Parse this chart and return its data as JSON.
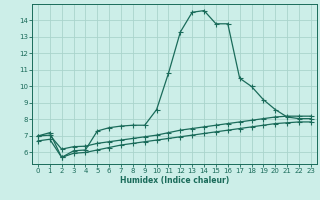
{
  "xlabel": "Humidex (Indice chaleur)",
  "xlim": [
    -0.5,
    23.5
  ],
  "ylim": [
    5.3,
    15.0
  ],
  "xticks": [
    0,
    1,
    2,
    3,
    4,
    5,
    6,
    7,
    8,
    9,
    10,
    11,
    12,
    13,
    14,
    15,
    16,
    17,
    18,
    19,
    20,
    21,
    22,
    23
  ],
  "yticks": [
    6,
    7,
    8,
    9,
    10,
    11,
    12,
    13,
    14
  ],
  "bg_color": "#cceee8",
  "grid_color": "#aad4cc",
  "line_color": "#1a6b5a",
  "line1_x": [
    0,
    1,
    2,
    3,
    4,
    5,
    6,
    7,
    8,
    9,
    10,
    11,
    12,
    13,
    14,
    15,
    16,
    17,
    18,
    19,
    20,
    21,
    22,
    23
  ],
  "line1_y": [
    7.0,
    7.2,
    5.7,
    6.1,
    6.15,
    7.3,
    7.5,
    7.6,
    7.65,
    7.65,
    8.6,
    10.8,
    13.3,
    14.5,
    14.6,
    13.8,
    13.8,
    10.5,
    10.0,
    9.2,
    8.6,
    8.15,
    8.05,
    8.05
  ],
  "line2_x": [
    0,
    1,
    2,
    3,
    4,
    5,
    6,
    7,
    8,
    9,
    10,
    11,
    12,
    13,
    14,
    15,
    16,
    17,
    18,
    19,
    20,
    21,
    22,
    23
  ],
  "line2_y": [
    7.0,
    7.05,
    6.2,
    6.35,
    6.38,
    6.55,
    6.65,
    6.75,
    6.85,
    6.95,
    7.05,
    7.2,
    7.35,
    7.45,
    7.55,
    7.65,
    7.75,
    7.85,
    7.95,
    8.05,
    8.15,
    8.2,
    8.2,
    8.2
  ],
  "line3_x": [
    0,
    1,
    2,
    3,
    4,
    5,
    6,
    7,
    8,
    9,
    10,
    11,
    12,
    13,
    14,
    15,
    16,
    17,
    18,
    19,
    20,
    21,
    22,
    23
  ],
  "line3_y": [
    6.7,
    6.8,
    5.7,
    5.95,
    6.0,
    6.15,
    6.3,
    6.45,
    6.55,
    6.65,
    6.75,
    6.85,
    6.95,
    7.05,
    7.15,
    7.25,
    7.35,
    7.45,
    7.55,
    7.65,
    7.75,
    7.8,
    7.85,
    7.85
  ]
}
